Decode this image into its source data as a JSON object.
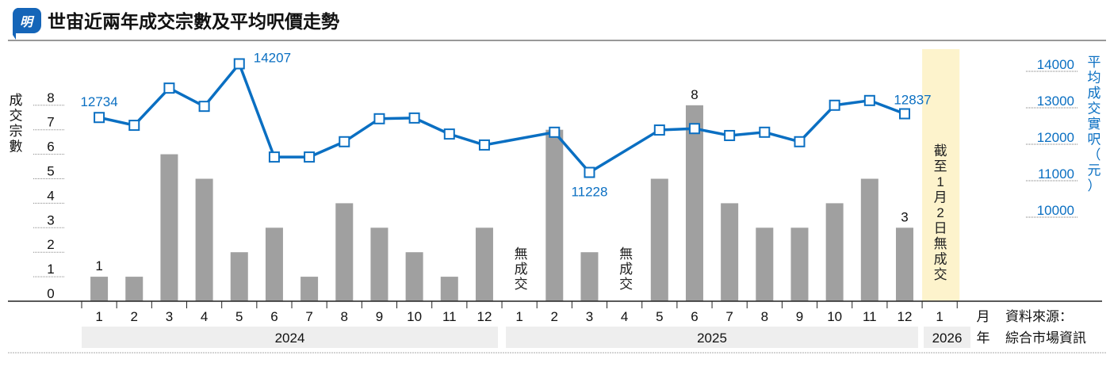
{
  "header": {
    "logo_text": "明",
    "title": "世宙近兩年成交宗數及平均呎價走勢"
  },
  "colors": {
    "bar": "#a0a0a0",
    "line": "#0a6fc2",
    "highlight": "#fdf3cc",
    "year_band": "#eeeeee"
  },
  "chart_data": {
    "type": "bar+line",
    "title": "世宙近兩年成交宗數及平均呎價走勢",
    "left_axis": {
      "label": "成交宗數",
      "ticks": [
        0,
        1,
        2,
        3,
        4,
        5,
        6,
        7,
        8
      ],
      "range": [
        0,
        8
      ]
    },
    "right_axis": {
      "label": "平均成交實呎（元）",
      "ticks": [
        10000,
        11000,
        12000,
        13000,
        14000
      ],
      "range": [
        10000,
        14000
      ]
    },
    "x_unit_month": "月",
    "x_unit_year": "年",
    "years": [
      {
        "label": "2024",
        "months": [
          "1",
          "2",
          "3",
          "4",
          "5",
          "6",
          "7",
          "8",
          "9",
          "10",
          "11",
          "12"
        ]
      },
      {
        "label": "2025",
        "months": [
          "1",
          "2",
          "3",
          "4",
          "5",
          "6",
          "7",
          "8",
          "9",
          "10",
          "11",
          "12"
        ]
      },
      {
        "label": "2026",
        "months": [
          "1"
        ]
      }
    ],
    "series": [
      {
        "type": "bar",
        "values": [
          1,
          1,
          6,
          5,
          2,
          3,
          1,
          4,
          3,
          2,
          1,
          3,
          0,
          7,
          2,
          0,
          5,
          8,
          4,
          3,
          3,
          4,
          5,
          3,
          null
        ]
      },
      {
        "type": "line",
        "values": [
          12734,
          12520,
          13540,
          13040,
          14207,
          11650,
          11650,
          12070,
          12700,
          12720,
          12280,
          11980,
          null,
          12330,
          11228,
          null,
          12390,
          12430,
          12240,
          12330,
          12070,
          13070,
          13200,
          12837,
          null
        ]
      }
    ],
    "bar_labels": [
      {
        "index": 0,
        "text": "1"
      },
      {
        "index": 17,
        "text": "8"
      },
      {
        "index": 23,
        "text": "3"
      }
    ],
    "line_labels": [
      {
        "index": 0,
        "text": "12734"
      },
      {
        "index": 4,
        "text": "14207"
      },
      {
        "index": 14,
        "text": "11228"
      },
      {
        "index": 23,
        "text": "12837"
      }
    ],
    "no_trade_labels": [
      {
        "index": 12,
        "text": "無成交"
      },
      {
        "index": 15,
        "text": "無成交"
      }
    ],
    "highlight": {
      "index": 24,
      "text": "截至1月2日無成交"
    },
    "source": {
      "line1": "資料來源：",
      "line2": "綜合市場資訊"
    }
  }
}
